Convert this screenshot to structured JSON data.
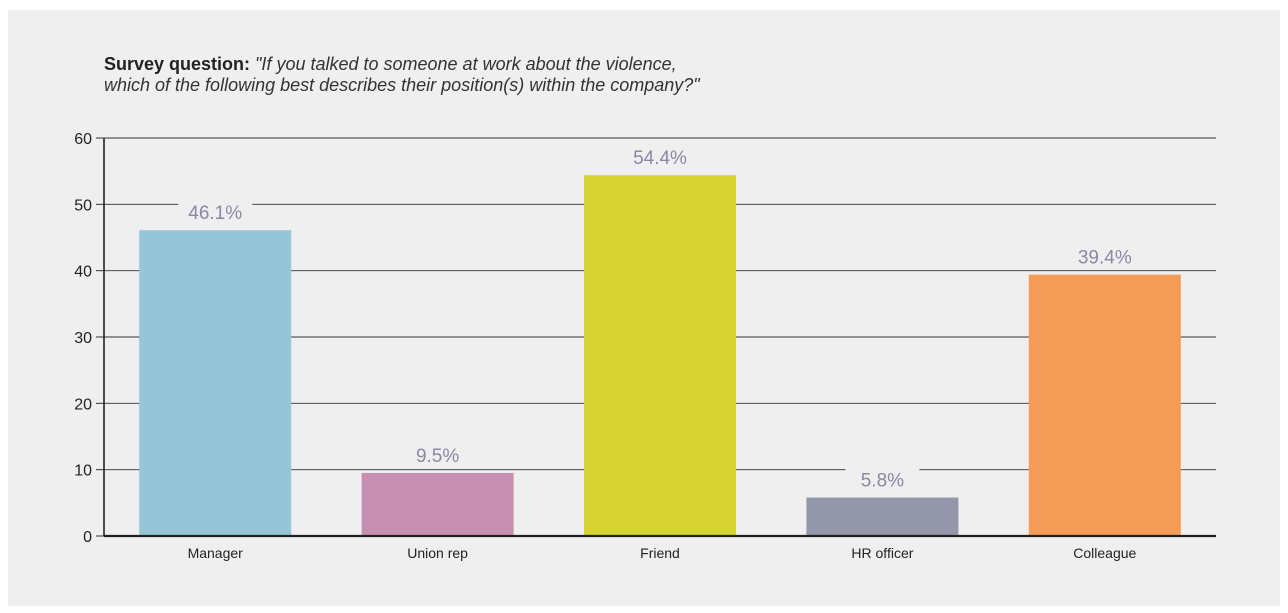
{
  "question": {
    "label": "Survey question:",
    "text_line1": "\"If you talked to someone at work about the violence,",
    "text_line2": "which of the following best describes their position(s) within the company?\""
  },
  "chart_data": {
    "type": "bar",
    "title": "",
    "xlabel": "",
    "ylabel": "",
    "categories": [
      "Manager",
      "Union rep",
      "Friend",
      "HR officer",
      "Colleague"
    ],
    "values": [
      46.1,
      9.5,
      54.4,
      5.8,
      39.4
    ],
    "data_labels": [
      "46.1%",
      "9.5%",
      "54.4%",
      "5.8%",
      "39.4%"
    ],
    "colors": [
      "#97c5d8",
      "#c78eb1",
      "#d6d332",
      "#9597ab",
      "#f49b57"
    ],
    "ylim": [
      0,
      60
    ],
    "yticks": [
      0,
      10,
      20,
      30,
      40,
      50,
      60
    ],
    "grid": true,
    "legend": "none"
  }
}
